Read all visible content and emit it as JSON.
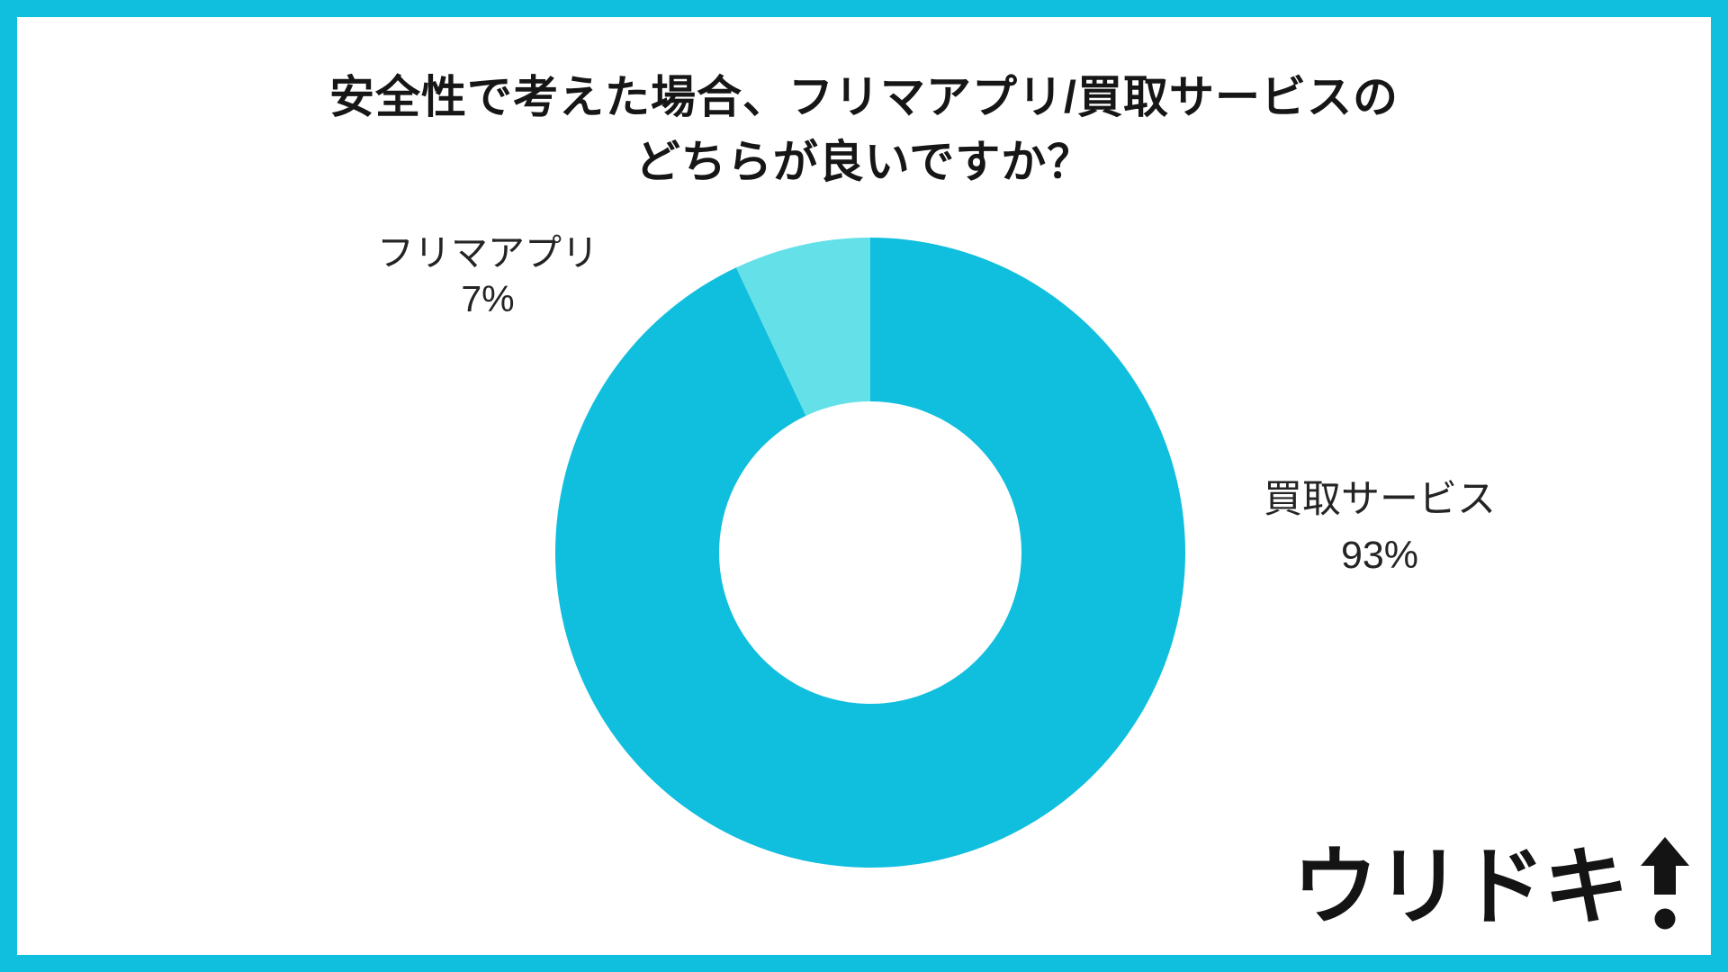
{
  "title": {
    "line1": "安全性で考えた場合、フリマアプリ/買取サービスの",
    "line2": "どちらが良いですか？"
  },
  "chart_data": {
    "type": "pie",
    "subtype": "donut",
    "title": "安全性で考えた場合、フリマアプリ/買取サービスのどちらが良いですか？",
    "categories": [
      "買取サービス",
      "フリマアプリ"
    ],
    "values": [
      93,
      7
    ],
    "unit": "%",
    "colors": [
      "#10BEDE",
      "#63E0E8"
    ],
    "start_angle_deg": 0,
    "direction": "clockwise",
    "inner_radius_ratio": 0.48,
    "legend_position": "none",
    "labels_outside": true
  },
  "labels": {
    "left": {
      "name": "フリマアプリ",
      "value": "7%"
    },
    "right": {
      "name": "買取サービス",
      "value": "93%"
    }
  },
  "logo": {
    "text": "ウリドキ",
    "mark": "up-arrow-exclamation"
  },
  "theme": {
    "accent": "#10BEDE",
    "accent_light": "#63E0E8",
    "text": "#161616",
    "background": "#FFFFFF"
  }
}
